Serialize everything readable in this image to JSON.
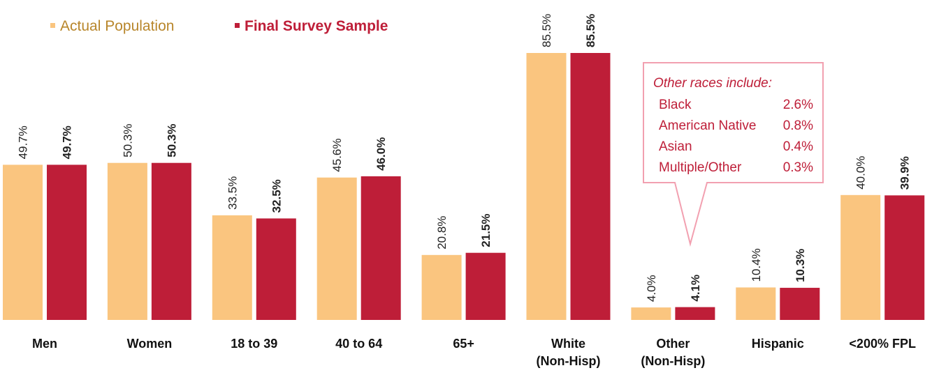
{
  "chart_data": {
    "type": "bar",
    "categories": [
      "Men",
      "Women",
      "18 to 39",
      "40 to 64",
      "65+",
      "White\n(Non-Hisp)",
      "Other\n(Non-Hisp)",
      "Hispanic",
      "<200% FPL"
    ],
    "series": [
      {
        "name": "Actual Population",
        "color": "#FAC57F",
        "values": [
          49.7,
          50.3,
          33.5,
          45.6,
          20.8,
          85.5,
          4.0,
          10.4,
          40.0
        ],
        "labels": [
          "49.7%",
          "50.3%",
          "33.5%",
          "45.6%",
          "20.8%",
          "85.5%",
          "4.0%",
          "10.4%",
          "40.0%"
        ]
      },
      {
        "name": "Final Survey Sample",
        "color": "#BE1E38",
        "values": [
          49.7,
          50.3,
          32.5,
          46.0,
          21.5,
          85.5,
          4.1,
          10.3,
          39.9
        ],
        "labels": [
          "49.7%",
          "50.3%",
          "32.5%",
          "46.0%",
          "21.5%",
          "85.5%",
          "4.1%",
          "10.3%",
          "39.9%"
        ]
      }
    ],
    "ylim": [
      0,
      85.5
    ],
    "grid": false,
    "legend": {
      "position": "top-left",
      "colors": {
        "actual_text": "#B8862B",
        "sample_text": "#BE1E38"
      }
    },
    "annotation": {
      "anchor_category": "Other\n(Non-Hisp)",
      "title": "Other races include:",
      "rows": [
        {
          "label": "Black",
          "value": "2.6%"
        },
        {
          "label": "American Native",
          "value": "0.8%"
        },
        {
          "label": "Asian",
          "value": "0.4%"
        },
        {
          "label": "Multiple/Other",
          "value": "0.3%"
        }
      ],
      "color": "#BE1E38",
      "border_color": "#F2A0B0"
    }
  }
}
